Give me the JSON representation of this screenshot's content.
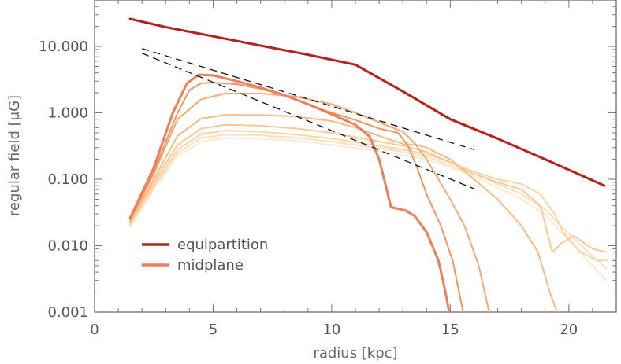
{
  "chart_data": {
    "type": "line",
    "xlabel": "radius [kpc]",
    "ylabel": "regular field [μG]",
    "xlim": [
      0,
      22
    ],
    "ylim": [
      0.001,
      50
    ],
    "yscale": "log",
    "xticks": [
      {
        "value": 0,
        "label": "0"
      },
      {
        "value": 5,
        "label": "5"
      },
      {
        "value": 10,
        "label": "10"
      },
      {
        "value": 15,
        "label": "15"
      },
      {
        "value": 20,
        "label": "20"
      }
    ],
    "yticks": [
      {
        "value": 0.001,
        "label": "0.001"
      },
      {
        "value": 0.01,
        "label": "0.010"
      },
      {
        "value": 0.1,
        "label": "0.100"
      },
      {
        "value": 1,
        "label": "1.000"
      },
      {
        "value": 10,
        "label": "10.000"
      }
    ],
    "grid": false,
    "legend_position": "bottom-left",
    "legend": [
      {
        "label": "equipartition",
        "color": "#b8211b"
      },
      {
        "label": "midplane",
        "color": "#ee7d5a"
      }
    ],
    "series": [
      {
        "name": "equipartition",
        "color": "#b8211b",
        "width": 3,
        "points": [
          [
            1.5,
            26
          ],
          [
            3,
            19.5
          ],
          [
            5,
            14.2
          ],
          [
            7,
            10.3
          ],
          [
            9,
            7.5
          ],
          [
            11,
            5.3
          ],
          [
            13,
            2.1
          ],
          [
            15,
            0.8
          ],
          [
            17,
            0.41
          ],
          [
            19,
            0.2
          ],
          [
            21.5,
            0.08
          ]
        ]
      },
      {
        "color": "#ee7d5a",
        "width": 3,
        "points": [
          [
            1.5,
            0.026
          ],
          [
            2.5,
            0.15
          ],
          [
            3.3,
            1.0
          ],
          [
            3.9,
            2.8
          ],
          [
            4.4,
            3.75
          ],
          [
            5,
            3.65
          ],
          [
            6,
            3.0
          ],
          [
            7,
            2.4
          ],
          [
            8,
            1.85
          ],
          [
            9,
            1.35
          ],
          [
            10,
            0.95
          ],
          [
            11,
            0.66
          ],
          [
            11.6,
            0.44
          ],
          [
            12,
            0.2
          ],
          [
            12.3,
            0.075
          ],
          [
            12.5,
            0.038
          ],
          [
            12.8,
            0.036
          ],
          [
            13.1,
            0.034
          ],
          [
            13.5,
            0.028
          ],
          [
            14,
            0.016
          ],
          [
            14.5,
            0.006
          ],
          [
            14.8,
            0.002
          ],
          [
            15,
            0.0008
          ]
        ]
      },
      {
        "color": "#f2955f",
        "width": 2,
        "points": [
          [
            1.5,
            0.025
          ],
          [
            2.5,
            0.13
          ],
          [
            3.5,
            1.0
          ],
          [
            4,
            2.2
          ],
          [
            4.5,
            2.8
          ],
          [
            5,
            2.85
          ],
          [
            6,
            2.7
          ],
          [
            7,
            2.3
          ],
          [
            8,
            1.85
          ],
          [
            9,
            1.35
          ],
          [
            10,
            1.0
          ],
          [
            11,
            0.78
          ],
          [
            12,
            0.58
          ],
          [
            12.8,
            0.5
          ],
          [
            13.2,
            0.33
          ],
          [
            13.6,
            0.15
          ],
          [
            14,
            0.06
          ],
          [
            14.6,
            0.02
          ],
          [
            15.1,
            0.006
          ],
          [
            15.6,
            0.0008
          ]
        ]
      },
      {
        "color": "#f5aa70",
        "width": 2,
        "points": [
          [
            1.5,
            0.024
          ],
          [
            2.5,
            0.12
          ],
          [
            3.5,
            0.8
          ],
          [
            4.5,
            1.6
          ],
          [
            5.5,
            1.95
          ],
          [
            7,
            1.95
          ],
          [
            8.5,
            1.75
          ],
          [
            10,
            1.35
          ],
          [
            11,
            1.0
          ],
          [
            12,
            0.72
          ],
          [
            13,
            0.52
          ],
          [
            13.5,
            0.35
          ],
          [
            14,
            0.2
          ],
          [
            14.5,
            0.1
          ],
          [
            15,
            0.05
          ],
          [
            15.6,
            0.02
          ],
          [
            16.2,
            0.005
          ],
          [
            16.7,
            0.0008
          ]
        ]
      },
      {
        "color": "#f8bb83",
        "width": 2,
        "points": [
          [
            1.5,
            0.023
          ],
          [
            2.5,
            0.1
          ],
          [
            3.5,
            0.45
          ],
          [
            4.5,
            0.82
          ],
          [
            5.5,
            0.93
          ],
          [
            7,
            0.93
          ],
          [
            8.5,
            0.88
          ],
          [
            10,
            0.75
          ],
          [
            11,
            0.6
          ],
          [
            12,
            0.45
          ],
          [
            13,
            0.34
          ],
          [
            13.6,
            0.33
          ],
          [
            14,
            0.3
          ],
          [
            15,
            0.2
          ],
          [
            16,
            0.1
          ],
          [
            17,
            0.05
          ],
          [
            18,
            0.02
          ],
          [
            18.7,
            0.008
          ],
          [
            19.2,
            0.002
          ],
          [
            19.6,
            0.0008
          ]
        ]
      },
      {
        "color": "#fac995",
        "width": 2,
        "points": [
          [
            1.5,
            0.022
          ],
          [
            2.5,
            0.09
          ],
          [
            3.5,
            0.33
          ],
          [
            4.5,
            0.58
          ],
          [
            5.5,
            0.66
          ],
          [
            7,
            0.64
          ],
          [
            8.5,
            0.58
          ],
          [
            10,
            0.5
          ],
          [
            11.5,
            0.4
          ],
          [
            13,
            0.32
          ],
          [
            14,
            0.26
          ],
          [
            15,
            0.18
          ],
          [
            16,
            0.12
          ],
          [
            17,
            0.09
          ],
          [
            18,
            0.07
          ],
          [
            18.8,
            0.04
          ],
          [
            19.3,
            0.008
          ],
          [
            19.7,
            0.011
          ],
          [
            20.2,
            0.014
          ],
          [
            21,
            0.009
          ],
          [
            21.6,
            0.008
          ]
        ]
      },
      {
        "color": "#fbd4a8",
        "width": 2,
        "points": [
          [
            1.5,
            0.021
          ],
          [
            2.5,
            0.08
          ],
          [
            3.5,
            0.28
          ],
          [
            4.5,
            0.48
          ],
          [
            5.5,
            0.54
          ],
          [
            7,
            0.52
          ],
          [
            8.5,
            0.47
          ],
          [
            10,
            0.41
          ],
          [
            11.5,
            0.34
          ],
          [
            13,
            0.28
          ],
          [
            14,
            0.24
          ],
          [
            15,
            0.18
          ],
          [
            16,
            0.13
          ],
          [
            17,
            0.1
          ],
          [
            18,
            0.085
          ],
          [
            18.8,
            0.06
          ],
          [
            19.4,
            0.03
          ],
          [
            19.8,
            0.015
          ],
          [
            20.5,
            0.008
          ],
          [
            21.2,
            0.006
          ],
          [
            21.6,
            0.006
          ]
        ]
      },
      {
        "color": "#fce0bd",
        "width": 2,
        "points": [
          [
            1.5,
            0.02
          ],
          [
            2.5,
            0.075
          ],
          [
            3.5,
            0.25
          ],
          [
            4.5,
            0.42
          ],
          [
            5.5,
            0.47
          ],
          [
            7,
            0.46
          ],
          [
            8.5,
            0.42
          ],
          [
            10,
            0.37
          ],
          [
            11.5,
            0.31
          ],
          [
            13,
            0.26
          ],
          [
            14,
            0.22
          ],
          [
            15,
            0.16
          ],
          [
            16,
            0.12
          ],
          [
            17,
            0.085
          ],
          [
            18,
            0.06
          ],
          [
            19,
            0.035
          ],
          [
            20,
            0.015
          ],
          [
            21,
            0.007
          ],
          [
            21.6,
            0.0045
          ]
        ]
      },
      {
        "color": "#fdead1",
        "width": 2,
        "points": [
          [
            1.5,
            0.019
          ],
          [
            2.5,
            0.07
          ],
          [
            3.5,
            0.22
          ],
          [
            4.5,
            0.37
          ],
          [
            5.5,
            0.42
          ],
          [
            7,
            0.41
          ],
          [
            8.5,
            0.38
          ],
          [
            10,
            0.33
          ],
          [
            11.5,
            0.28
          ],
          [
            13,
            0.23
          ],
          [
            14,
            0.2
          ],
          [
            15,
            0.15
          ],
          [
            16,
            0.11
          ],
          [
            17,
            0.075
          ],
          [
            18,
            0.05
          ],
          [
            19,
            0.03
          ],
          [
            20,
            0.012
          ],
          [
            21,
            0.005
          ],
          [
            21.6,
            0.003
          ]
        ]
      }
    ],
    "reference_lines": [
      {
        "color": "#111111",
        "dash": "9,6",
        "points": [
          [
            2,
            9.3
          ],
          [
            16,
            0.28
          ]
        ]
      },
      {
        "color": "#111111",
        "dash": "9,6",
        "points": [
          [
            2,
            7.9
          ],
          [
            16,
            0.072
          ]
        ]
      }
    ]
  }
}
